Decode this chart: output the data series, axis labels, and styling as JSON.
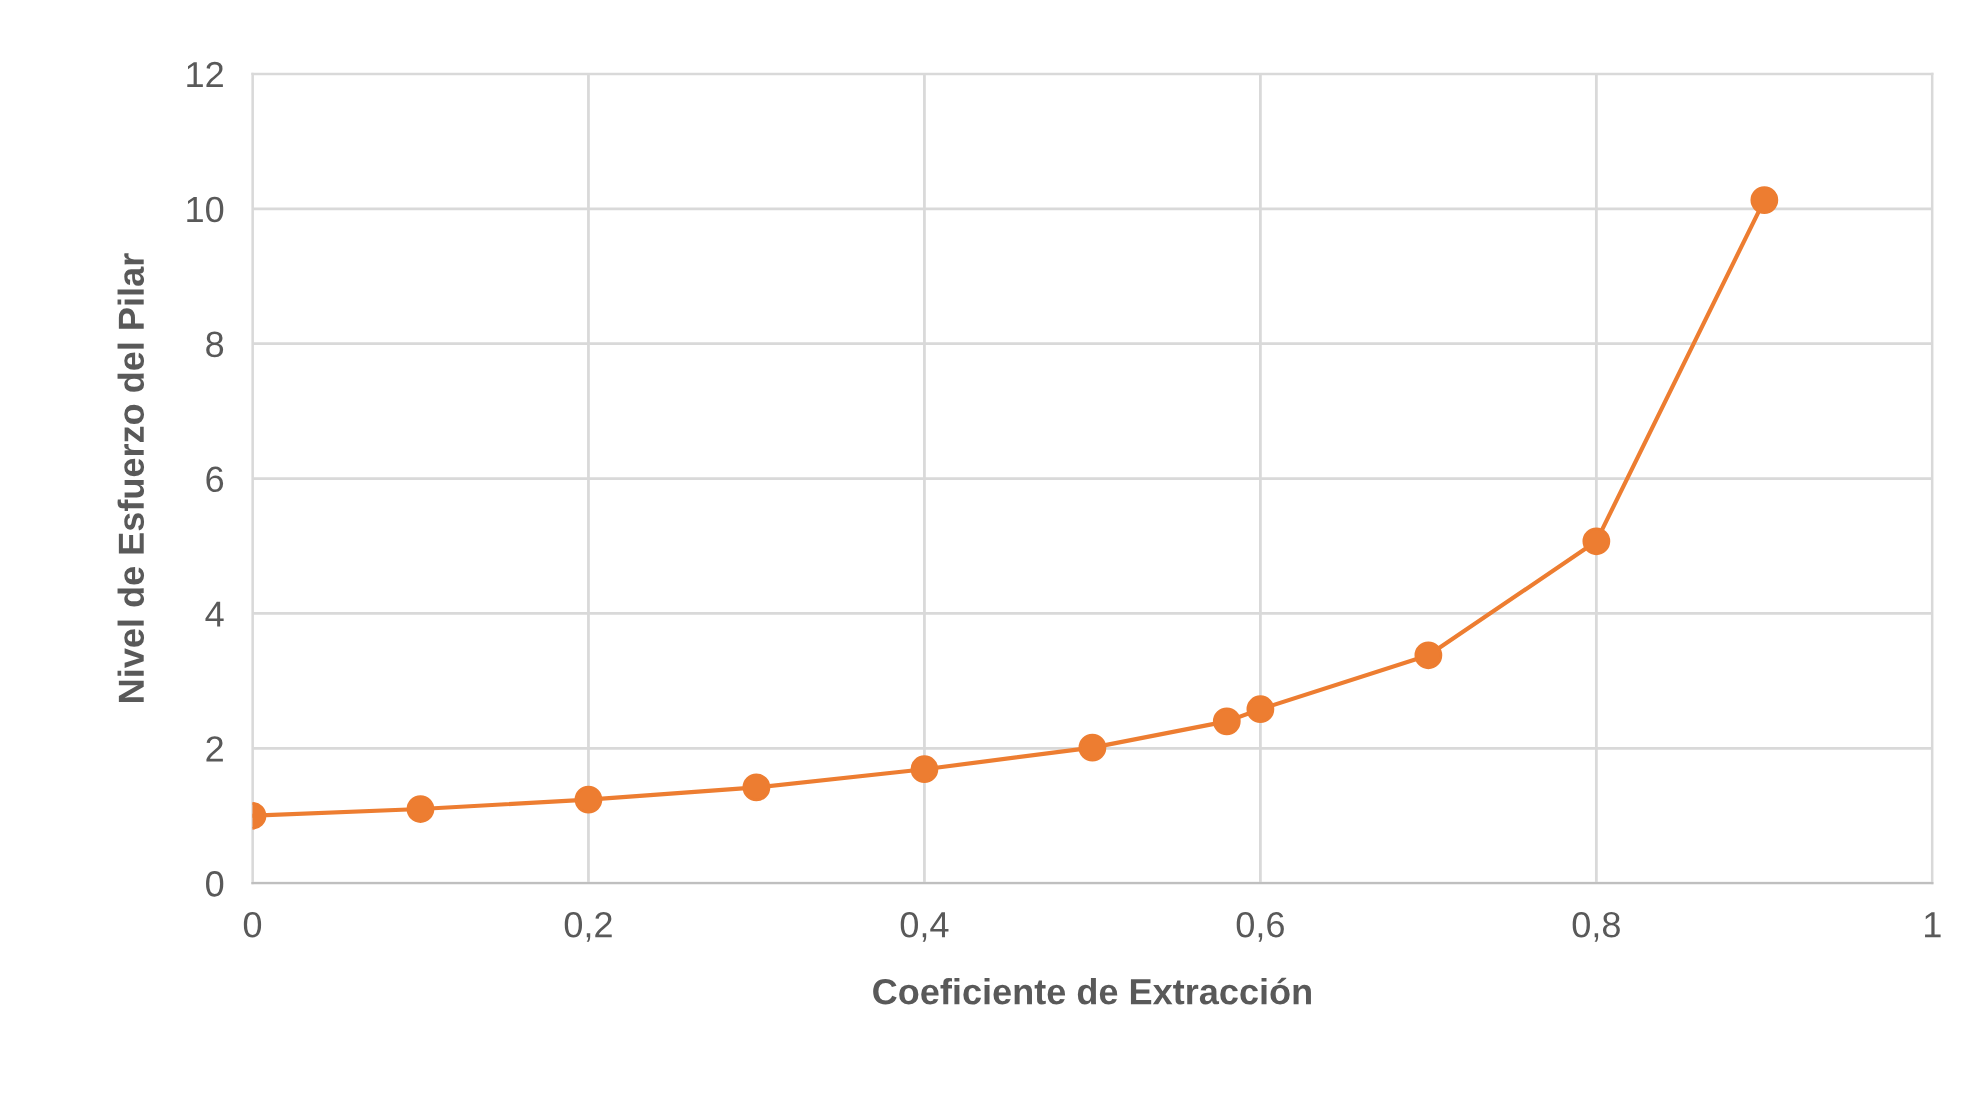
{
  "chart_data": {
    "type": "line",
    "xlabel": "Coeficiente de Extracción",
    "ylabel": "Nivel de Esfuerzo del Pilar",
    "x": [
      0,
      0.1,
      0.2,
      0.3,
      0.4,
      0.5,
      0.58,
      0.6,
      0.7,
      0.8,
      0.9
    ],
    "series": [
      {
        "color": "#ed7d31",
        "values": [
          1.0,
          1.1,
          1.24,
          1.42,
          1.69,
          2.01,
          2.4,
          2.58,
          3.38,
          5.07,
          10.13
        ]
      }
    ],
    "xlim": [
      0,
      1
    ],
    "ylim": [
      0,
      12
    ],
    "xticks": [
      0,
      {
        "value": 0.2,
        "label": "0,2"
      },
      {
        "value": 0.4,
        "label": "0,4"
      },
      {
        "value": 0.6,
        "label": "0,6"
      },
      {
        "value": 0.8,
        "label": "0,8"
      },
      1
    ],
    "yticks": [
      0,
      2,
      4,
      6,
      8,
      10,
      12
    ],
    "grid": true,
    "marker": "circle",
    "line_style": "solid",
    "legend": false
  }
}
